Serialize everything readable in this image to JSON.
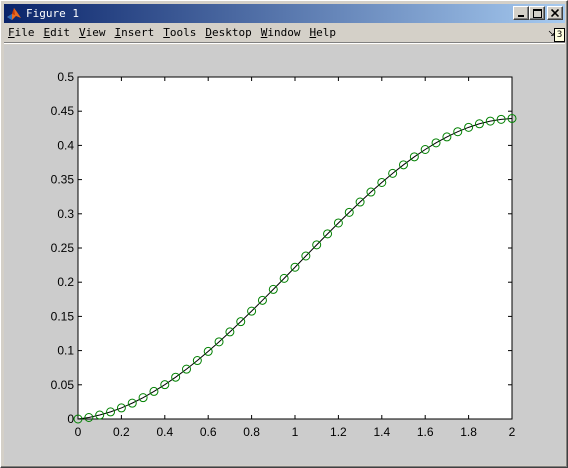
{
  "window": {
    "title": "Figure 1",
    "icon": "matlab-logo-icon",
    "controls": [
      "minimize-icon",
      "maximize-icon",
      "close-icon"
    ]
  },
  "menu": [
    {
      "label": "File",
      "key": "F",
      "rest": "ile"
    },
    {
      "label": "Edit",
      "key": "E",
      "rest": "dit"
    },
    {
      "label": "View",
      "key": "V",
      "rest": "iew"
    },
    {
      "label": "Insert",
      "key": "I",
      "rest": "nsert"
    },
    {
      "label": "Tools",
      "key": "T",
      "rest": "ools"
    },
    {
      "label": "Desktop",
      "key": "D",
      "rest": "esktop"
    },
    {
      "label": "Window",
      "key": "W",
      "rest": "indow"
    },
    {
      "label": "Help",
      "key": "H",
      "rest": "elp"
    }
  ],
  "corner_badge": "3",
  "colors": {
    "titlebar_start": "#0a246a",
    "titlebar_end": "#a6caf0",
    "figure_bg": "#cccccc",
    "axes_bg": "#ffffff",
    "line": "#000000",
    "marker": "#008000"
  },
  "chart_data": {
    "type": "line",
    "title": "",
    "xlabel": "",
    "ylabel": "",
    "xlim": [
      0,
      2
    ],
    "ylim": [
      0,
      0.5
    ],
    "xticks": [
      "0",
      "0.2",
      "0.4",
      "0.6",
      "0.8",
      "1",
      "1.2",
      "1.4",
      "1.6",
      "1.8",
      "2"
    ],
    "yticks": [
      "0",
      "0.05",
      "0.1",
      "0.15",
      "0.2",
      "0.25",
      "0.3",
      "0.35",
      "0.4",
      "0.45",
      "0.5"
    ],
    "grid": false,
    "marker": "circle",
    "series": [
      {
        "x": [
          0,
          0.05,
          0.1,
          0.15,
          0.2,
          0.25,
          0.3,
          0.35,
          0.4,
          0.45,
          0.5,
          0.55,
          0.6,
          0.65,
          0.7,
          0.75,
          0.8,
          0.85,
          0.9,
          0.95,
          1.0,
          1.05,
          1.1,
          1.15,
          1.2,
          1.25,
          1.3,
          1.35,
          1.4,
          1.45,
          1.5,
          1.55,
          1.6,
          1.65,
          1.7,
          1.75,
          1.8,
          1.85,
          1.9,
          1.95,
          2.0
        ],
        "y": [
          0.0,
          0.0022,
          0.0058,
          0.0104,
          0.0162,
          0.0232,
          0.0312,
          0.0403,
          0.0502,
          0.0611,
          0.0729,
          0.0855,
          0.0988,
          0.1128,
          0.1273,
          0.1423,
          0.1577,
          0.1735,
          0.1895,
          0.2056,
          0.2219,
          0.2383,
          0.2546,
          0.2707,
          0.2866,
          0.3021,
          0.3172,
          0.3318,
          0.3458,
          0.3591,
          0.3716,
          0.3833,
          0.394,
          0.4037,
          0.4124,
          0.42,
          0.4264,
          0.4316,
          0.4355,
          0.4381,
          0.4394
        ]
      }
    ]
  }
}
